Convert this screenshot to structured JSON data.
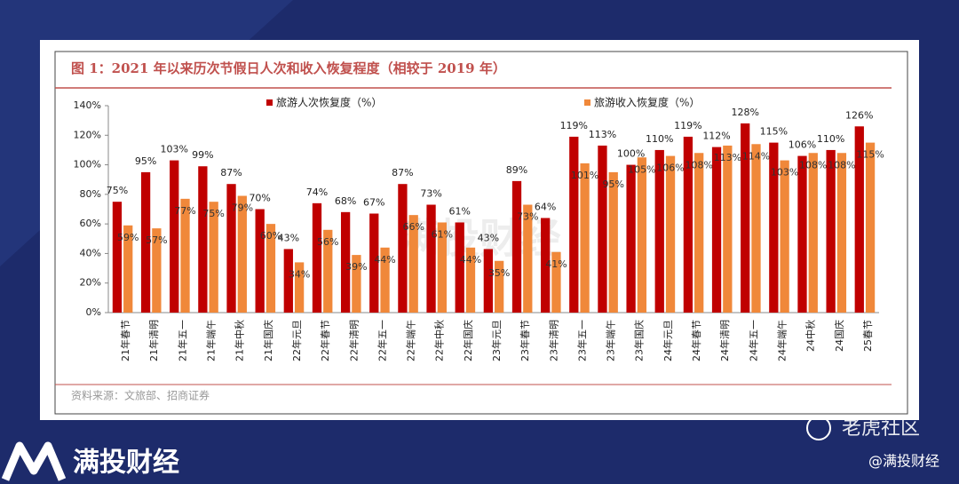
{
  "chart_data": {
    "type": "bar",
    "title": "图 1：2021 年以来历次节假日人次和收入恢复程度（相较于 2019 年）",
    "source": "资料来源：文旅部、招商证券",
    "categories": [
      "21年春节",
      "21年清明",
      "21年五一",
      "21年端午",
      "21年中秋",
      "21年国庆",
      "22年元旦",
      "22年春节",
      "22年清明",
      "22年五一",
      "22年端午",
      "22年中秋",
      "22年国庆",
      "23年元旦",
      "23年春节",
      "23年清明",
      "23年五一",
      "23年端午",
      "23年国庆",
      "24年元旦",
      "24年春节",
      "24年清明",
      "24年五一",
      "24年端午",
      "24中秋",
      "24国庆",
      "25春节"
    ],
    "series": [
      {
        "name": "旅游人次恢复度（%）",
        "color": "#c00000",
        "values": [
          75,
          95,
          103,
          99,
          87,
          70,
          43,
          74,
          68,
          67,
          87,
          73,
          61,
          43,
          89,
          64,
          119,
          113,
          100,
          110,
          119,
          112,
          128,
          115,
          106,
          110,
          126
        ],
        "value_labels": [
          "75%",
          "95%",
          "103%",
          "99%",
          "87%",
          "70%",
          "43%",
          "74%",
          "68%",
          "67%",
          "87%",
          "73%",
          "61%",
          "43%",
          "89%",
          "64%",
          "119%",
          "113%",
          "100%",
          "110%",
          "119%",
          "112%",
          "128%",
          "115%",
          "106%",
          "110%",
          "126%"
        ]
      },
      {
        "name": "旅游收入恢复度（%）",
        "color": "#f0883a",
        "values": [
          59,
          57,
          77,
          75,
          79,
          60,
          34,
          56,
          39,
          44,
          66,
          61,
          44,
          35,
          73,
          41,
          101,
          95,
          105,
          106,
          108,
          113,
          114,
          103,
          108,
          108,
          115
        ],
        "value_labels": [
          "59%",
          "57%",
          "77%",
          "75%",
          "79%",
          "60%",
          "34%",
          "56%",
          "39%",
          "44%",
          "66%",
          "61%",
          "44%",
          "35%",
          "73%",
          "41%",
          "101%",
          "95%",
          "105%",
          "106%",
          "108%",
          "113%",
          "114%",
          "103%",
          "108%",
          "108%",
          "115%"
        ]
      }
    ],
    "ylim": [
      0,
      140
    ],
    "yticks": [
      {
        "value": 0,
        "label": "0%"
      },
      {
        "value": 20,
        "label": "20%"
      },
      {
        "value": 40,
        "label": "40%"
      },
      {
        "value": 60,
        "label": "60%"
      },
      {
        "value": 80,
        "label": "80%"
      },
      {
        "value": 100,
        "label": "100%"
      },
      {
        "value": 120,
        "label": "120%"
      },
      {
        "value": 140,
        "label": "140%"
      }
    ]
  },
  "branding": {
    "logo_text": "满投财经",
    "center_watermark": "满投财经",
    "corner_watermark": "老虎社区",
    "handle": "@满投财经"
  }
}
